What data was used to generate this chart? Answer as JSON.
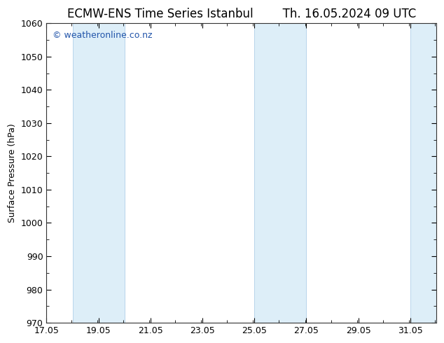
{
  "title_left": "ECMW-ENS Time Series Istanbul",
  "title_right": "Th. 16.05.2024 09 UTC",
  "ylabel": "Surface Pressure (hPa)",
  "ylim": [
    970,
    1060
  ],
  "yticks": [
    970,
    980,
    990,
    1000,
    1010,
    1020,
    1030,
    1040,
    1050,
    1060
  ],
  "xlim": [
    17.05,
    32.05
  ],
  "xticks": [
    17.05,
    19.05,
    21.05,
    23.05,
    25.05,
    27.05,
    29.05,
    31.05
  ],
  "xticklabels": [
    "17.05",
    "19.05",
    "21.05",
    "23.05",
    "25.05",
    "27.05",
    "29.05",
    "31.05"
  ],
  "shaded_bands": [
    {
      "x_start": 18.05,
      "x_end": 20.05
    },
    {
      "x_start": 25.05,
      "x_end": 27.05
    },
    {
      "x_start": 31.05,
      "x_end": 32.05
    }
  ],
  "band_color": "#ddeef8",
  "band_edge_color": "#b0cfe8",
  "watermark": "© weatheronline.co.nz",
  "watermark_color": "#2255aa",
  "watermark_fontsize": 9,
  "title_fontsize": 12,
  "axis_label_fontsize": 9,
  "tick_fontsize": 9,
  "background_color": "#ffffff",
  "plot_bg_color": "#ffffff",
  "spine_color": "#333333"
}
